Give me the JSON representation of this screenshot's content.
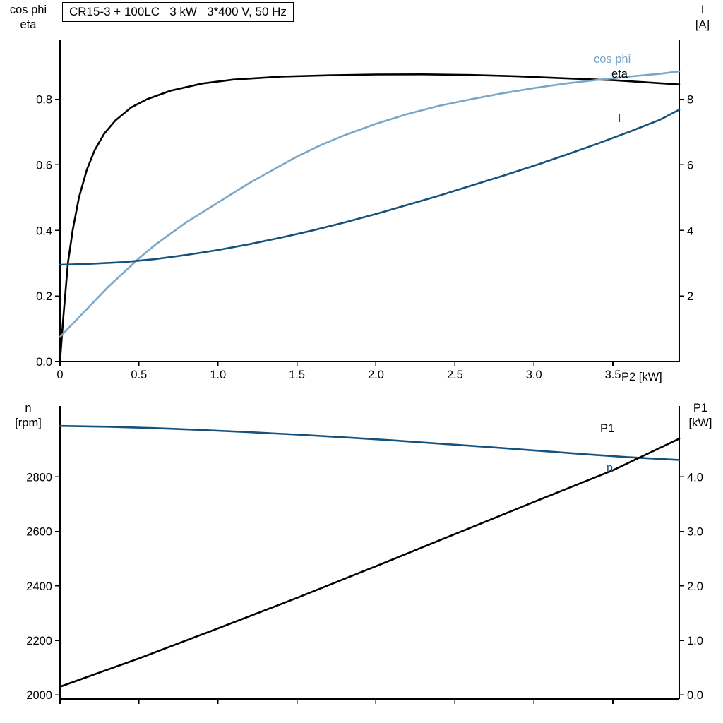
{
  "page": {
    "title_box": "CR15-3 + 100LC   3 kW   3*400 V, 50 Hz"
  },
  "colors": {
    "black": "#000000",
    "dark_blue": "#14517c",
    "light_blue": "#7aa6c8",
    "axis": "#000000"
  },
  "labels": {
    "top_left_line1": "cos phi",
    "top_left_line2": "eta",
    "top_right_line1": "I",
    "top_right_line2": "[A]",
    "x_axis": "P2 [kW]",
    "curve_cosphi": "cos phi",
    "curve_eta": "eta",
    "curve_current": "I",
    "bottom_left_line1": "n",
    "bottom_left_line2": "[rpm]",
    "bottom_right_line1": "P1",
    "bottom_right_line2": "[kW]",
    "curve_p1": "P1",
    "curve_n": "n"
  },
  "chart_data": [
    {
      "type": "line",
      "title": "CR15-3 + 100LC 3 kW 3*400 V, 50 Hz",
      "xlabel": "P2 [kW]",
      "xlim": [
        0,
        3.92
      ],
      "x_ticks": [
        0,
        0.5,
        1,
        1.5,
        2,
        2.5,
        3,
        3.5
      ],
      "x_tick_labels": [
        "0",
        "0.5",
        "1.0",
        "1.5",
        "2.0",
        "2.5",
        "3.0",
        "3.5"
      ],
      "show_x_labels": true,
      "grid": false,
      "left_axis": {
        "label": "cos phi / eta",
        "lim": [
          0,
          0.98
        ],
        "ticks": [
          0,
          0.2,
          0.4,
          0.6,
          0.8
        ],
        "tick_labels": [
          "0.0",
          "0.2",
          "0.4",
          "0.6",
          "0.8"
        ]
      },
      "right_axis": {
        "label": "I [A]",
        "lim": [
          0,
          9.8
        ],
        "ticks": [
          2,
          4,
          6,
          8
        ],
        "tick_labels": [
          "2",
          "4",
          "6",
          "8"
        ]
      },
      "series": [
        {
          "name": "eta",
          "axis": "left",
          "color_key": "black",
          "points": [
            [
              0,
              0
            ],
            [
              0.02,
              0.13
            ],
            [
              0.05,
              0.3
            ],
            [
              0.08,
              0.4
            ],
            [
              0.12,
              0.5
            ],
            [
              0.17,
              0.585
            ],
            [
              0.22,
              0.645
            ],
            [
              0.28,
              0.695
            ],
            [
              0.35,
              0.735
            ],
            [
              0.45,
              0.775
            ],
            [
              0.55,
              0.8
            ],
            [
              0.7,
              0.826
            ],
            [
              0.9,
              0.848
            ],
            [
              1.1,
              0.86
            ],
            [
              1.4,
              0.869
            ],
            [
              1.7,
              0.873
            ],
            [
              2,
              0.8755
            ],
            [
              2.3,
              0.876
            ],
            [
              2.6,
              0.874
            ],
            [
              2.9,
              0.87
            ],
            [
              3.2,
              0.864
            ],
            [
              3.5,
              0.858
            ],
            [
              3.7,
              0.852
            ],
            [
              3.92,
              0.845
            ]
          ]
        },
        {
          "name": "cos phi",
          "axis": "left",
          "color_key": "light_blue",
          "points": [
            [
              0,
              0.075
            ],
            [
              0.1,
              0.125
            ],
            [
              0.2,
              0.175
            ],
            [
              0.3,
              0.225
            ],
            [
              0.4,
              0.27
            ],
            [
              0.5,
              0.315
            ],
            [
              0.6,
              0.355
            ],
            [
              0.7,
              0.39
            ],
            [
              0.8,
              0.425
            ],
            [
              0.9,
              0.455
            ],
            [
              1,
              0.485
            ],
            [
              1.1,
              0.515
            ],
            [
              1.2,
              0.545
            ],
            [
              1.35,
              0.585
            ],
            [
              1.5,
              0.625
            ],
            [
              1.65,
              0.66
            ],
            [
              1.8,
              0.69
            ],
            [
              2,
              0.725
            ],
            [
              2.2,
              0.755
            ],
            [
              2.4,
              0.78
            ],
            [
              2.6,
              0.8
            ],
            [
              2.8,
              0.818
            ],
            [
              3,
              0.834
            ],
            [
              3.2,
              0.848
            ],
            [
              3.4,
              0.859
            ],
            [
              3.6,
              0.869
            ],
            [
              3.8,
              0.878
            ],
            [
              3.92,
              0.885
            ]
          ]
        },
        {
          "name": "I",
          "axis": "right",
          "color_key": "dark_blue",
          "points": [
            [
              0,
              2.95
            ],
            [
              0.2,
              2.98
            ],
            [
              0.4,
              3.03
            ],
            [
              0.6,
              3.12
            ],
            [
              0.8,
              3.25
            ],
            [
              1,
              3.4
            ],
            [
              1.2,
              3.58
            ],
            [
              1.4,
              3.78
            ],
            [
              1.6,
              4
            ],
            [
              1.8,
              4.24
            ],
            [
              2,
              4.5
            ],
            [
              2.2,
              4.78
            ],
            [
              2.4,
              5.06
            ],
            [
              2.6,
              5.36
            ],
            [
              2.8,
              5.66
            ],
            [
              3,
              5.97
            ],
            [
              3.2,
              6.3
            ],
            [
              3.4,
              6.64
            ],
            [
              3.6,
              7
            ],
            [
              3.8,
              7.38
            ],
            [
              3.92,
              7.68
            ]
          ]
        }
      ]
    },
    {
      "type": "line",
      "title": "",
      "xlabel": "",
      "xlim": [
        0,
        3.92
      ],
      "x_ticks": [
        0,
        0.5,
        1,
        1.5,
        2,
        2.5,
        3,
        3.5
      ],
      "x_tick_labels": [],
      "show_x_labels": false,
      "grid": false,
      "left_axis": {
        "label": "n [rpm]",
        "lim": [
          1985,
          3060
        ],
        "ticks": [
          2000,
          2200,
          2400,
          2600,
          2800
        ],
        "tick_labels": [
          "2000",
          "2200",
          "2400",
          "2600",
          "2800"
        ]
      },
      "right_axis": {
        "label": "P1 [kW]",
        "lim": [
          -0.075,
          5.3
        ],
        "ticks": [
          0,
          1,
          2,
          3,
          4
        ],
        "tick_labels": [
          "0.0",
          "1.0",
          "2.0",
          "3.0",
          "4.0"
        ]
      },
      "series": [
        {
          "name": "n",
          "axis": "left",
          "color_key": "dark_blue",
          "points": [
            [
              0,
              2987
            ],
            [
              0.3,
              2984
            ],
            [
              0.6,
              2979
            ],
            [
              0.9,
              2972
            ],
            [
              1.2,
              2964
            ],
            [
              1.5,
              2955
            ],
            [
              1.8,
              2945
            ],
            [
              2.1,
              2934
            ],
            [
              2.4,
              2922
            ],
            [
              2.7,
              2910
            ],
            [
              3,
              2897
            ],
            [
              3.3,
              2884
            ],
            [
              3.6,
              2872
            ],
            [
              3.92,
              2862
            ]
          ]
        },
        {
          "name": "P1",
          "axis": "right",
          "color_key": "black",
          "points": [
            [
              0,
              0.15
            ],
            [
              0.5,
              0.67
            ],
            [
              1,
              1.22
            ],
            [
              1.5,
              1.78
            ],
            [
              2,
              2.36
            ],
            [
              2.5,
              2.95
            ],
            [
              3,
              3.54
            ],
            [
              3.5,
              4.12
            ],
            [
              3.92,
              4.7
            ]
          ]
        }
      ]
    }
  ]
}
